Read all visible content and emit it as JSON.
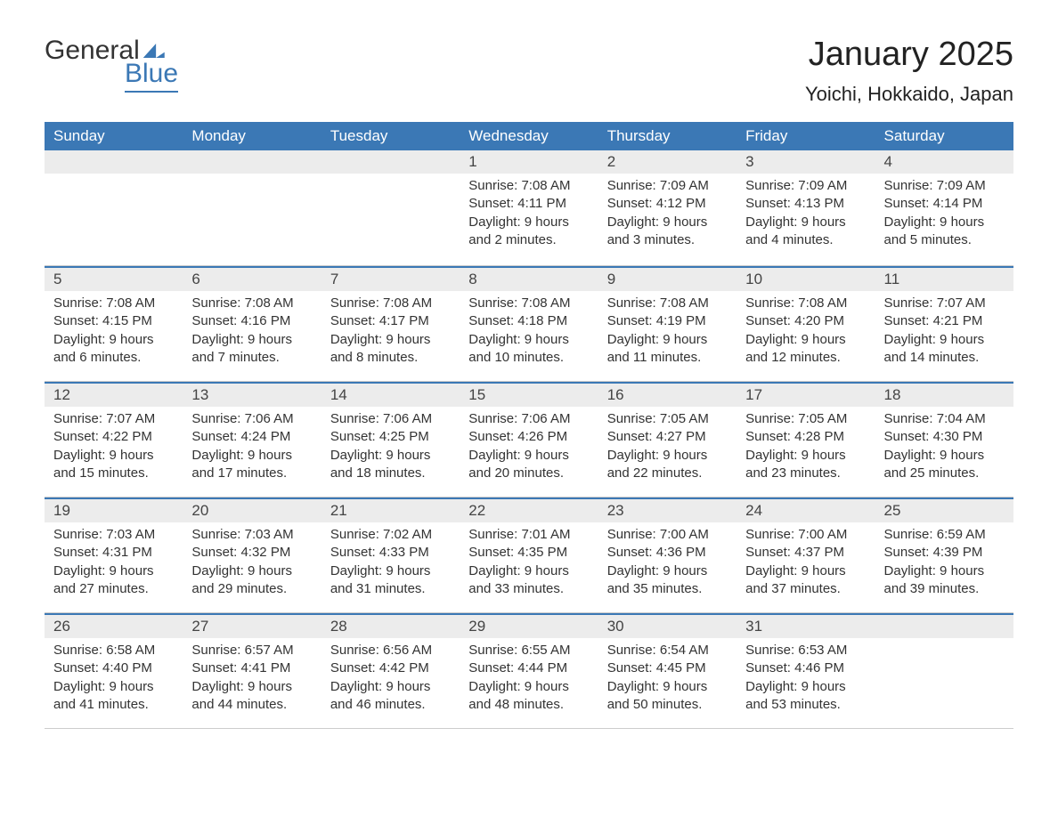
{
  "brand": {
    "line1": "General",
    "line2": "Blue"
  },
  "title": "January 2025",
  "location": "Yoichi, Hokkaido, Japan",
  "colors": {
    "header_bg": "#3b78b5",
    "header_text": "#ffffff",
    "daynum_bg": "#ececec",
    "text": "#333333",
    "border_top": "#3b78b5",
    "border_bottom": "#cccccc",
    "background": "#ffffff"
  },
  "typography": {
    "title_fontsize": 38,
    "location_fontsize": 22,
    "weekday_fontsize": 17,
    "daynum_fontsize": 17,
    "body_fontsize": 15
  },
  "layout": {
    "columns": 7,
    "rows": 5
  },
  "weekdays": [
    "Sunday",
    "Monday",
    "Tuesday",
    "Wednesday",
    "Thursday",
    "Friday",
    "Saturday"
  ],
  "weeks": [
    [
      {
        "day": "",
        "sunrise": "",
        "sunset": "",
        "daylight": ""
      },
      {
        "day": "",
        "sunrise": "",
        "sunset": "",
        "daylight": ""
      },
      {
        "day": "",
        "sunrise": "",
        "sunset": "",
        "daylight": ""
      },
      {
        "day": "1",
        "sunrise": "Sunrise: 7:08 AM",
        "sunset": "Sunset: 4:11 PM",
        "daylight": "Daylight: 9 hours and 2 minutes."
      },
      {
        "day": "2",
        "sunrise": "Sunrise: 7:09 AM",
        "sunset": "Sunset: 4:12 PM",
        "daylight": "Daylight: 9 hours and 3 minutes."
      },
      {
        "day": "3",
        "sunrise": "Sunrise: 7:09 AM",
        "sunset": "Sunset: 4:13 PM",
        "daylight": "Daylight: 9 hours and 4 minutes."
      },
      {
        "day": "4",
        "sunrise": "Sunrise: 7:09 AM",
        "sunset": "Sunset: 4:14 PM",
        "daylight": "Daylight: 9 hours and 5 minutes."
      }
    ],
    [
      {
        "day": "5",
        "sunrise": "Sunrise: 7:08 AM",
        "sunset": "Sunset: 4:15 PM",
        "daylight": "Daylight: 9 hours and 6 minutes."
      },
      {
        "day": "6",
        "sunrise": "Sunrise: 7:08 AM",
        "sunset": "Sunset: 4:16 PM",
        "daylight": "Daylight: 9 hours and 7 minutes."
      },
      {
        "day": "7",
        "sunrise": "Sunrise: 7:08 AM",
        "sunset": "Sunset: 4:17 PM",
        "daylight": "Daylight: 9 hours and 8 minutes."
      },
      {
        "day": "8",
        "sunrise": "Sunrise: 7:08 AM",
        "sunset": "Sunset: 4:18 PM",
        "daylight": "Daylight: 9 hours and 10 minutes."
      },
      {
        "day": "9",
        "sunrise": "Sunrise: 7:08 AM",
        "sunset": "Sunset: 4:19 PM",
        "daylight": "Daylight: 9 hours and 11 minutes."
      },
      {
        "day": "10",
        "sunrise": "Sunrise: 7:08 AM",
        "sunset": "Sunset: 4:20 PM",
        "daylight": "Daylight: 9 hours and 12 minutes."
      },
      {
        "day": "11",
        "sunrise": "Sunrise: 7:07 AM",
        "sunset": "Sunset: 4:21 PM",
        "daylight": "Daylight: 9 hours and 14 minutes."
      }
    ],
    [
      {
        "day": "12",
        "sunrise": "Sunrise: 7:07 AM",
        "sunset": "Sunset: 4:22 PM",
        "daylight": "Daylight: 9 hours and 15 minutes."
      },
      {
        "day": "13",
        "sunrise": "Sunrise: 7:06 AM",
        "sunset": "Sunset: 4:24 PM",
        "daylight": "Daylight: 9 hours and 17 minutes."
      },
      {
        "day": "14",
        "sunrise": "Sunrise: 7:06 AM",
        "sunset": "Sunset: 4:25 PM",
        "daylight": "Daylight: 9 hours and 18 minutes."
      },
      {
        "day": "15",
        "sunrise": "Sunrise: 7:06 AM",
        "sunset": "Sunset: 4:26 PM",
        "daylight": "Daylight: 9 hours and 20 minutes."
      },
      {
        "day": "16",
        "sunrise": "Sunrise: 7:05 AM",
        "sunset": "Sunset: 4:27 PM",
        "daylight": "Daylight: 9 hours and 22 minutes."
      },
      {
        "day": "17",
        "sunrise": "Sunrise: 7:05 AM",
        "sunset": "Sunset: 4:28 PM",
        "daylight": "Daylight: 9 hours and 23 minutes."
      },
      {
        "day": "18",
        "sunrise": "Sunrise: 7:04 AM",
        "sunset": "Sunset: 4:30 PM",
        "daylight": "Daylight: 9 hours and 25 minutes."
      }
    ],
    [
      {
        "day": "19",
        "sunrise": "Sunrise: 7:03 AM",
        "sunset": "Sunset: 4:31 PM",
        "daylight": "Daylight: 9 hours and 27 minutes."
      },
      {
        "day": "20",
        "sunrise": "Sunrise: 7:03 AM",
        "sunset": "Sunset: 4:32 PM",
        "daylight": "Daylight: 9 hours and 29 minutes."
      },
      {
        "day": "21",
        "sunrise": "Sunrise: 7:02 AM",
        "sunset": "Sunset: 4:33 PM",
        "daylight": "Daylight: 9 hours and 31 minutes."
      },
      {
        "day": "22",
        "sunrise": "Sunrise: 7:01 AM",
        "sunset": "Sunset: 4:35 PM",
        "daylight": "Daylight: 9 hours and 33 minutes."
      },
      {
        "day": "23",
        "sunrise": "Sunrise: 7:00 AM",
        "sunset": "Sunset: 4:36 PM",
        "daylight": "Daylight: 9 hours and 35 minutes."
      },
      {
        "day": "24",
        "sunrise": "Sunrise: 7:00 AM",
        "sunset": "Sunset: 4:37 PM",
        "daylight": "Daylight: 9 hours and 37 minutes."
      },
      {
        "day": "25",
        "sunrise": "Sunrise: 6:59 AM",
        "sunset": "Sunset: 4:39 PM",
        "daylight": "Daylight: 9 hours and 39 minutes."
      }
    ],
    [
      {
        "day": "26",
        "sunrise": "Sunrise: 6:58 AM",
        "sunset": "Sunset: 4:40 PM",
        "daylight": "Daylight: 9 hours and 41 minutes."
      },
      {
        "day": "27",
        "sunrise": "Sunrise: 6:57 AM",
        "sunset": "Sunset: 4:41 PM",
        "daylight": "Daylight: 9 hours and 44 minutes."
      },
      {
        "day": "28",
        "sunrise": "Sunrise: 6:56 AM",
        "sunset": "Sunset: 4:42 PM",
        "daylight": "Daylight: 9 hours and 46 minutes."
      },
      {
        "day": "29",
        "sunrise": "Sunrise: 6:55 AM",
        "sunset": "Sunset: 4:44 PM",
        "daylight": "Daylight: 9 hours and 48 minutes."
      },
      {
        "day": "30",
        "sunrise": "Sunrise: 6:54 AM",
        "sunset": "Sunset: 4:45 PM",
        "daylight": "Daylight: 9 hours and 50 minutes."
      },
      {
        "day": "31",
        "sunrise": "Sunrise: 6:53 AM",
        "sunset": "Sunset: 4:46 PM",
        "daylight": "Daylight: 9 hours and 53 minutes."
      },
      {
        "day": "",
        "sunrise": "",
        "sunset": "",
        "daylight": ""
      }
    ]
  ]
}
